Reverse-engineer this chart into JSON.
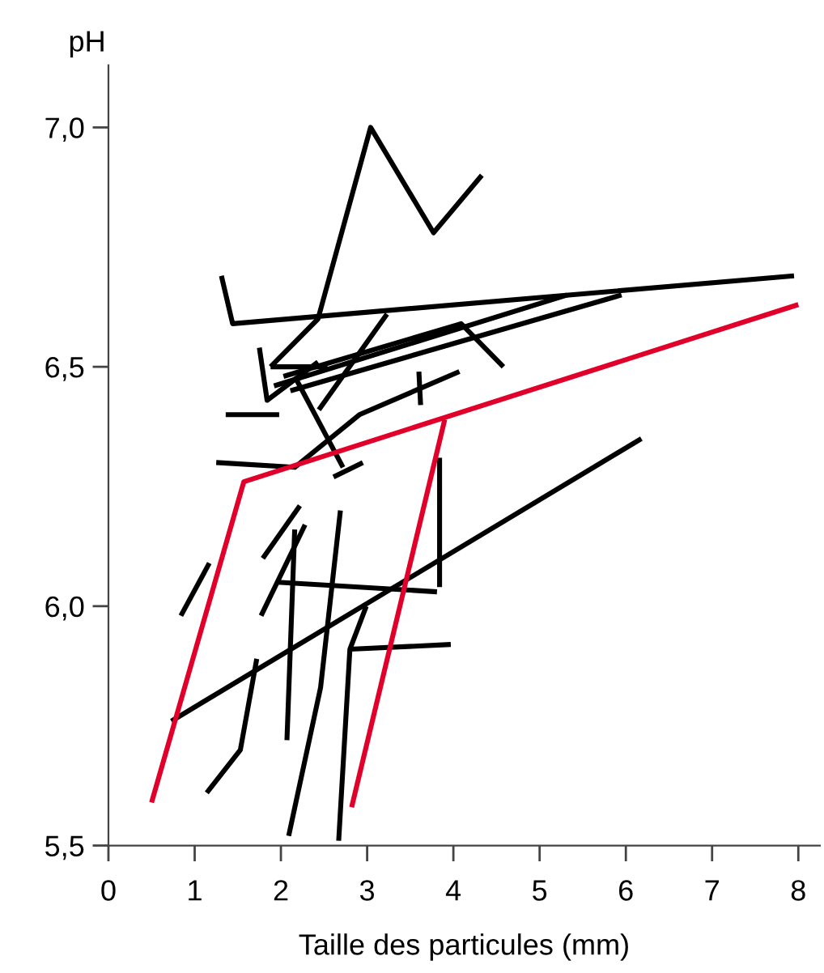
{
  "chart_data": {
    "type": "line",
    "xlabel": "Taille des particules (mm)",
    "ylabel": "pH",
    "xlim": [
      0,
      8.25
    ],
    "ylim": [
      5.5,
      7.13
    ],
    "xticks": [
      0,
      1,
      2,
      3,
      4,
      5,
      6,
      7,
      8
    ],
    "yticks": [
      {
        "value": 5.5,
        "label": "5,5"
      },
      {
        "value": 6.0,
        "label": "6,0"
      },
      {
        "value": 6.5,
        "label": "6,5"
      },
      {
        "value": 7.0,
        "label": "7,0"
      }
    ],
    "grid": false,
    "legend": false,
    "marker": "none",
    "line_style": "solid",
    "series": [
      {
        "color": "#000000",
        "x": [
          1.88,
          2.43,
          3.04,
          3.77,
          4.33
        ],
        "values": [
          6.5,
          6.6,
          7.0,
          6.78,
          6.9
        ]
      },
      {
        "color": "#000000",
        "x": [
          1.31,
          1.44,
          7.95
        ],
        "values": [
          6.69,
          6.59,
          6.69
        ]
      },
      {
        "color": "#000000",
        "x": [
          0.73,
          6.18
        ],
        "values": [
          5.76,
          6.35
        ]
      },
      {
        "color": "#000000",
        "x": [
          1.75,
          1.84,
          2.43
        ],
        "values": [
          6.54,
          6.43,
          6.51
        ]
      },
      {
        "color": "#000000",
        "x": [
          1.92,
          5.32
        ],
        "values": [
          6.46,
          6.65
        ]
      },
      {
        "color": "#000000",
        "x": [
          2.03,
          4.09,
          4.58
        ],
        "values": [
          6.48,
          6.59,
          6.5
        ]
      },
      {
        "color": "#000000",
        "x": [
          2.11,
          5.95
        ],
        "values": [
          6.45,
          6.65
        ]
      },
      {
        "color": "#000000",
        "x": [
          1.88,
          2.54
        ],
        "values": [
          6.5,
          6.5
        ]
      },
      {
        "color": "#000000",
        "x": [
          2.44,
          3.23
        ],
        "values": [
          6.41,
          6.61
        ]
      },
      {
        "color": "#000000",
        "x": [
          2.16,
          2.72
        ],
        "values": [
          6.48,
          6.29
        ]
      },
      {
        "color": "#000000",
        "x": [
          2.61,
          2.95
        ],
        "values": [
          6.27,
          6.3
        ]
      },
      {
        "color": "#000000",
        "x": [
          1.25,
          2.16,
          2.91,
          4.07
        ],
        "values": [
          6.3,
          6.29,
          6.4,
          6.49
        ]
      },
      {
        "color": "#000000",
        "x": [
          3.6,
          3.62
        ],
        "values": [
          6.49,
          6.42
        ]
      },
      {
        "color": "#000000",
        "x": [
          1.36,
          1.98
        ],
        "values": [
          6.4,
          6.4
        ]
      },
      {
        "color": "#000000",
        "x": [
          0.84,
          1.17
        ],
        "values": [
          5.98,
          6.09
        ]
      },
      {
        "color": "#000000",
        "x": [
          1.79,
          2.22
        ],
        "values": [
          6.1,
          6.21
        ]
      },
      {
        "color": "#000000",
        "x": [
          1.77,
          2.28
        ],
        "values": [
          5.98,
          6.17
        ]
      },
      {
        "color": "#000000",
        "x": [
          2.16,
          2.07
        ],
        "values": [
          6.16,
          5.72
        ]
      },
      {
        "color": "#000000",
        "x": [
          2.09,
          2.46,
          2.69
        ],
        "values": [
          5.52,
          5.83,
          6.2
        ]
      },
      {
        "color": "#000000",
        "x": [
          1.96,
          3.81
        ],
        "values": [
          6.05,
          6.03
        ]
      },
      {
        "color": "#000000",
        "x": [
          3.84,
          3.84
        ],
        "values": [
          6.31,
          6.04
        ]
      },
      {
        "color": "#000000",
        "x": [
          2.67,
          2.8,
          2.99
        ],
        "values": [
          5.51,
          5.91,
          6.0
        ]
      },
      {
        "color": "#000000",
        "x": [
          2.8,
          3.97
        ],
        "values": [
          5.91,
          5.92
        ]
      },
      {
        "color": "#000000",
        "x": [
          1.14,
          1.53,
          1.72
        ],
        "values": [
          5.61,
          5.7,
          5.89
        ]
      },
      {
        "color": "#e0002a",
        "x": [
          0.5,
          1.57,
          8.0
        ],
        "values": [
          5.59,
          6.26,
          6.63
        ]
      },
      {
        "color": "#e0002a",
        "x": [
          3.9,
          2.82
        ],
        "values": [
          6.39,
          5.58
        ]
      }
    ]
  }
}
